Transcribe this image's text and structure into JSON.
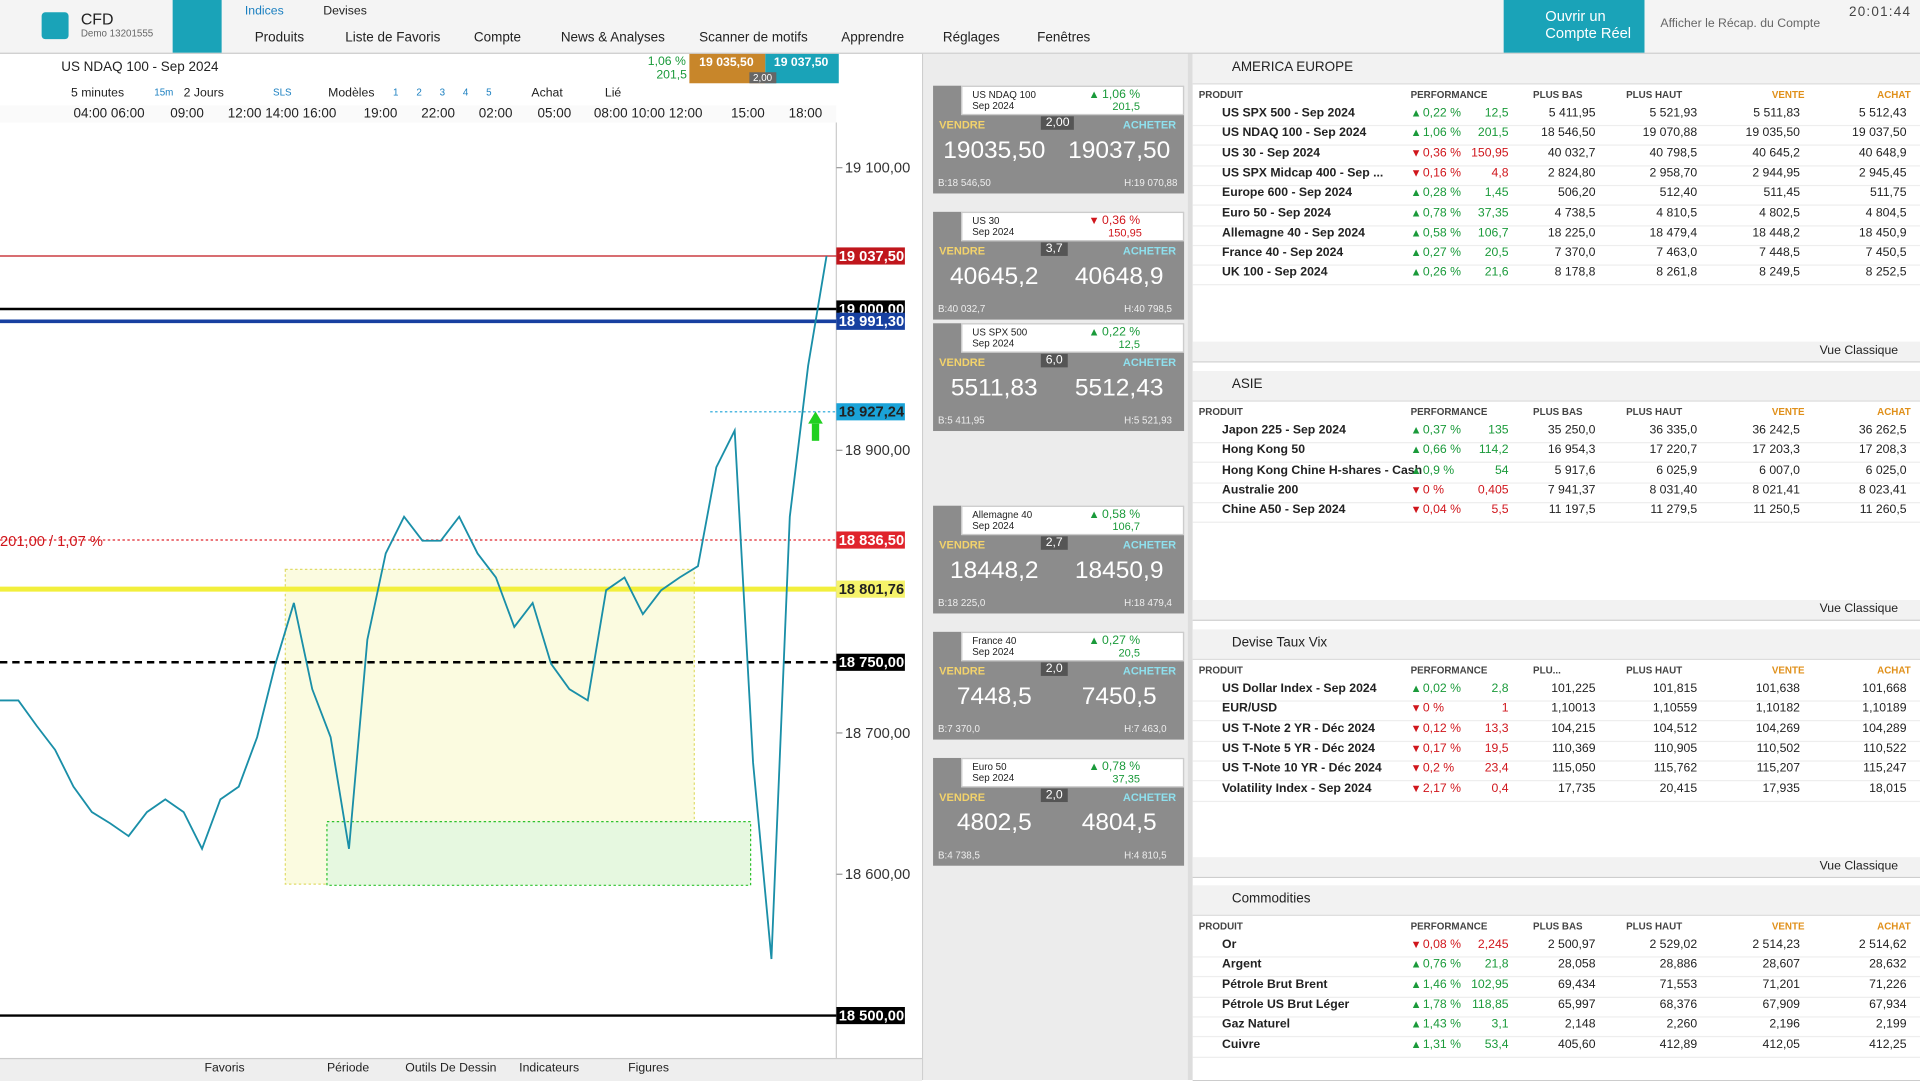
{
  "app": {
    "brand": "CFD",
    "account": "Demo 13201555",
    "tabs": [
      "Indices",
      "Devises"
    ],
    "menu": [
      "Produits",
      "Liste de Favoris",
      "Compte",
      "News & Analyses",
      "Scanner de motifs",
      "Apprendre",
      "Réglages",
      "Fenêtres"
    ],
    "open_account": "Ouvrir un Compte Réel",
    "summary": "Afficher le Récap. du Compte",
    "clock": "20:01:44"
  },
  "chart": {
    "instrument": "US NDAQ 100 - Sep 2024",
    "perf": "1,06 %",
    "change": "201,5",
    "sell": "19 035,50",
    "buy": "19 037,50",
    "spread": "2,00",
    "toolbar": [
      "5 minutes",
      "15m",
      "2 Jours",
      "SLS",
      "Modèles",
      "1",
      "2",
      "3",
      "4",
      "5",
      "Achat",
      "Lié"
    ],
    "time_labels": [
      "04:00 06:00",
      "09:00",
      "12:00 14:00 16:00",
      "19:00",
      "22:00",
      "02:00",
      "05:00",
      "08:00 10:00 12:00",
      "15:00",
      "18:00"
    ],
    "chart_data": {
      "type": "line",
      "color": "#1a8fa8",
      "values": [
        18723,
        18723,
        18705,
        18688,
        18662,
        18644,
        18636,
        18627,
        18644,
        18653,
        18644,
        18618,
        18653,
        18662,
        18697,
        18749,
        18792,
        18731,
        18697,
        18618,
        18766,
        18827,
        18853,
        18836,
        18836,
        18853,
        18827,
        18810,
        18775,
        18792,
        18749,
        18731,
        18723,
        18801,
        18810,
        18784,
        18801,
        18810,
        18818,
        18888,
        18914,
        18679,
        18540,
        18853,
        18960,
        19037.5
      ],
      "ylim": [
        18470,
        19132
      ],
      "yticks": [
        {
          "value": 19100,
          "label": "19 100,00"
        },
        {
          "value": 18900,
          "label": "18 900,00"
        },
        {
          "value": 18700,
          "label": "18 700,00"
        },
        {
          "value": 18600,
          "label": "18 600,00"
        }
      ],
      "levels": [
        {
          "value": 19037.5,
          "label": "19 037,50",
          "color": "#c0161c",
          "dash": "solid",
          "width": 1
        },
        {
          "value": 19000,
          "label": "19 000,00",
          "color": "#000000",
          "dash": "solid",
          "width": 2
        },
        {
          "value": 18991.3,
          "label": "18 991,30",
          "color": "#1740a0",
          "dash": "solid",
          "width": 3
        },
        {
          "value": 18927.24,
          "label": "18 927,24",
          "color": "#1aa3d8",
          "dash": "dotted",
          "width": 1
        },
        {
          "value": 18836.5,
          "label": "18 836,50",
          "color": "#e0242c",
          "dash": "dotted",
          "width": 1
        },
        {
          "value": 18801.76,
          "label": "18 801,76",
          "color": "#f2ef3c",
          "dash": "solid",
          "width": 4
        },
        {
          "value": 18750,
          "label": "18 750,00",
          "color": "#000000",
          "dash": "dashed",
          "width": 2
        },
        {
          "value": 18500,
          "label": "18 500,00",
          "color": "#000000",
          "dash": "solid",
          "width": 2
        }
      ],
      "annotation": "201,00 / 1,07 %"
    },
    "bottom": [
      "Favoris",
      "Période",
      "Outils De Dessin",
      "Indicateurs",
      "Figures"
    ]
  },
  "tiles": {
    "sell_label": "VENDRE",
    "buy_label": "ACHETER",
    "items": [
      {
        "name": "US NDAQ 100",
        "expiry": "Sep 2024",
        "dir": "up",
        "perf": "1,06 %",
        "change": "201,5",
        "spread": "2,00",
        "sell": "19035,50",
        "buy": "19037,50",
        "low": "B:18 546,50",
        "high": "H:19 070,88"
      },
      {
        "name": "US 30",
        "expiry": "Sep 2024",
        "dir": "down",
        "perf": "0,36 %",
        "change": "150,95",
        "spread": "3,7",
        "sell": "40645,2",
        "buy": "40648,9",
        "low": "B:40 032,7",
        "high": "H:40 798,5"
      },
      {
        "name": "US SPX 500",
        "expiry": "Sep 2024",
        "dir": "up",
        "perf": "0,22 %",
        "change": "12,5",
        "spread": "6,0",
        "sell": "5511,83",
        "buy": "5512,43",
        "low": "B:5 411,95",
        "high": "H:5 521,93"
      },
      {
        "name": "Allemagne 40",
        "expiry": "Sep 2024",
        "dir": "up",
        "perf": "0,58 %",
        "change": "106,7",
        "spread": "2,7",
        "sell": "18448,2",
        "buy": "18450,9",
        "low": "B:18 225,0",
        "high": "H:18 479,4"
      },
      {
        "name": "France 40",
        "expiry": "Sep 2024",
        "dir": "up",
        "perf": "0,27 %",
        "change": "20,5",
        "spread": "2,0",
        "sell": "7448,5",
        "buy": "7450,5",
        "low": "B:7 370,0",
        "high": "H:7 463,0"
      },
      {
        "name": "Euro 50",
        "expiry": "Sep 2024",
        "dir": "up",
        "perf": "0,78 %",
        "change": "37,35",
        "spread": "2,0",
        "sell": "4802,5",
        "buy": "4804,5",
        "low": "B:4 738,5",
        "high": "H:4 810,5"
      }
    ]
  },
  "panels": [
    {
      "title": "AMERICA EUROPE",
      "columns": [
        "PRODUIT",
        "PERFORMANCE",
        "PLUS BAS",
        "PLUS HAUT",
        "VENTE",
        "ACHAT"
      ],
      "footer": "Vue Classique",
      "rows": [
        {
          "name": "US SPX 500 - Sep 2024",
          "dir": "up",
          "perf": "0,22 %",
          "change": "12,5",
          "low": "5 411,95",
          "high": "5 521,93",
          "sell": "5 511,83",
          "buy": "5 512,43"
        },
        {
          "name": "US NDAQ 100 - Sep 2024",
          "dir": "up",
          "perf": "1,06 %",
          "change": "201,5",
          "low": "18 546,50",
          "high": "19 070,88",
          "sell": "19 035,50",
          "buy": "19 037,50"
        },
        {
          "name": "US 30 - Sep 2024",
          "dir": "down",
          "perf": "0,36 %",
          "change": "150,95",
          "low": "40 032,7",
          "high": "40 798,5",
          "sell": "40 645,2",
          "buy": "40 648,9"
        },
        {
          "name": "US SPX Midcap 400 - Sep ...",
          "dir": "down",
          "perf": "0,16 %",
          "change": "4,8",
          "low": "2 824,80",
          "high": "2 958,70",
          "sell": "2 944,95",
          "buy": "2 945,45"
        },
        {
          "name": "Europe 600 - Sep 2024",
          "dir": "up",
          "perf": "0,28 %",
          "change": "1,45",
          "low": "506,20",
          "high": "512,40",
          "sell": "511,45",
          "buy": "511,75"
        },
        {
          "name": "Euro 50 - Sep 2024",
          "dir": "up",
          "perf": "0,78 %",
          "change": "37,35",
          "low": "4 738,5",
          "high": "4 810,5",
          "sell": "4 802,5",
          "buy": "4 804,5"
        },
        {
          "name": "Allemagne 40 - Sep 2024",
          "dir": "up",
          "perf": "0,58 %",
          "change": "106,7",
          "low": "18 225,0",
          "high": "18 479,4",
          "sell": "18 448,2",
          "buy": "18 450,9"
        },
        {
          "name": "France 40 - Sep 2024",
          "dir": "up",
          "perf": "0,27 %",
          "change": "20,5",
          "low": "7 370,0",
          "high": "7 463,0",
          "sell": "7 448,5",
          "buy": "7 450,5"
        },
        {
          "name": "UK 100 - Sep 2024",
          "dir": "up",
          "perf": "0,26 %",
          "change": "21,6",
          "low": "8 178,8",
          "high": "8 261,8",
          "sell": "8 249,5",
          "buy": "8 252,5"
        }
      ]
    },
    {
      "title": "ASIE",
      "columns": [
        "PRODUIT",
        "PERFORMANCE",
        "PLUS BAS",
        "PLUS HAUT",
        "VENTE",
        "ACHAT"
      ],
      "footer": "Vue Classique",
      "rows": [
        {
          "name": "Japon 225 - Sep 2024",
          "dir": "up",
          "perf": "0,37 %",
          "change": "135",
          "low": "35 250,0",
          "high": "36 335,0",
          "sell": "36 242,5",
          "buy": "36 262,5"
        },
        {
          "name": "Hong Kong 50",
          "dir": "up",
          "perf": "0,66 %",
          "change": "114,2",
          "low": "16 954,3",
          "high": "17 220,7",
          "sell": "17 203,3",
          "buy": "17 208,3"
        },
        {
          "name": "Hong Kong Chine H-shares - Cash",
          "dir": "up",
          "perf": "0,9 %",
          "change": "54",
          "low": "5 917,6",
          "high": "6 025,9",
          "sell": "6 007,0",
          "buy": "6 025,0"
        },
        {
          "name": "Australie 200",
          "dir": "down",
          "perf": "0 %",
          "change": "0,405",
          "low": "7 941,37",
          "high": "8 031,40",
          "sell": "8 021,41",
          "buy": "8 023,41"
        },
        {
          "name": "Chine A50 - Sep 2024",
          "dir": "down",
          "perf": "0,04 %",
          "change": "5,5",
          "low": "11 197,5",
          "high": "11 279,5",
          "sell": "11 250,5",
          "buy": "11 260,5"
        }
      ]
    },
    {
      "title": "Devise Taux Vix",
      "columns": [
        "PRODUIT",
        "PERFORMANCE",
        "PLU...",
        "PLUS HAUT",
        "VENTE",
        "ACHAT"
      ],
      "footer": "Vue Classique",
      "rows": [
        {
          "name": "US Dollar Index - Sep 2024",
          "dir": "up",
          "perf": "0,02 %",
          "change": "2,8",
          "low": "101,225",
          "high": "101,815",
          "sell": "101,638",
          "buy": "101,668"
        },
        {
          "name": "EUR/USD",
          "dir": "down",
          "perf": "0 %",
          "change": "1",
          "low": "1,10013",
          "high": "1,10559",
          "sell": "1,10182",
          "buy": "1,10189"
        },
        {
          "name": "US T-Note 2 YR - Déc 2024",
          "dir": "down",
          "perf": "0,12 %",
          "change": "13,3",
          "low": "104,215",
          "high": "104,512",
          "sell": "104,269",
          "buy": "104,289"
        },
        {
          "name": "US T-Note 5 YR - Déc 2024",
          "dir": "down",
          "perf": "0,17 %",
          "change": "19,5",
          "low": "110,369",
          "high": "110,905",
          "sell": "110,502",
          "buy": "110,522"
        },
        {
          "name": "US T-Note 10 YR - Déc 2024",
          "dir": "down",
          "perf": "0,2 %",
          "change": "23,4",
          "low": "115,050",
          "high": "115,762",
          "sell": "115,207",
          "buy": "115,247"
        },
        {
          "name": "Volatility Index - Sep 2024",
          "dir": "down",
          "perf": "2,17 %",
          "change": "0,4",
          "low": "17,735",
          "high": "20,415",
          "sell": "17,935",
          "buy": "18,015"
        }
      ]
    },
    {
      "title": "Commodities",
      "columns": [
        "PRODUIT",
        "PERFORMANCE",
        "PLUS BAS",
        "PLUS HAUT",
        "VENTE",
        "ACHAT"
      ],
      "rows": [
        {
          "name": "Or",
          "dir": "down",
          "perf": "0,08 %",
          "change": "2,245",
          "low": "2 500,97",
          "high": "2 529,02",
          "sell": "2 514,23",
          "buy": "2 514,62"
        },
        {
          "name": "Argent",
          "dir": "up",
          "perf": "0,76 %",
          "change": "21,8",
          "low": "28,058",
          "high": "28,886",
          "sell": "28,607",
          "buy": "28,632"
        },
        {
          "name": "Pétrole Brut Brent",
          "dir": "up",
          "perf": "1,46 %",
          "change": "102,95",
          "low": "69,434",
          "high": "71,553",
          "sell": "71,201",
          "buy": "71,226"
        },
        {
          "name": "Pétrole US Brut Léger",
          "dir": "up",
          "perf": "1,78 %",
          "change": "118,85",
          "low": "65,997",
          "high": "68,376",
          "sell": "67,909",
          "buy": "67,934"
        },
        {
          "name": "Gaz Naturel",
          "dir": "up",
          "perf": "1,43 %",
          "change": "3,1",
          "low": "2,148",
          "high": "2,260",
          "sell": "2,196",
          "buy": "2,199"
        },
        {
          "name": "Cuivre",
          "dir": "up",
          "perf": "1,31 %",
          "change": "53,4",
          "low": "405,60",
          "high": "412,89",
          "sell": "412,05",
          "buy": "412,25"
        }
      ]
    }
  ]
}
